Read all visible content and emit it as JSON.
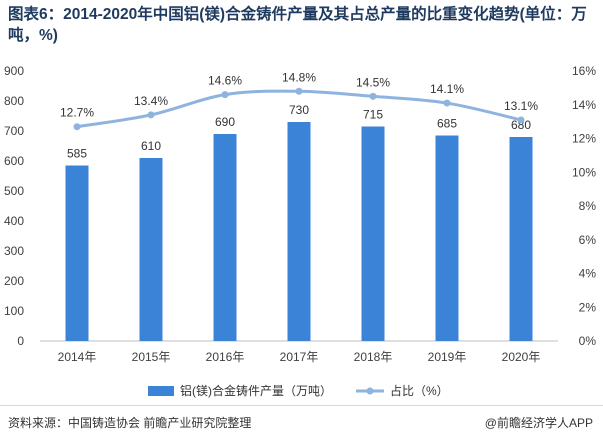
{
  "title": "图表6：2014-2020年中国铝(镁)合金铸件产量及其占总产量的比重变化趋势(单位：万吨，%)",
  "chart_data": {
    "type": "bar+line",
    "categories": [
      "2014年",
      "2015年",
      "2016年",
      "2017年",
      "2018年",
      "2019年",
      "2020年"
    ],
    "series": [
      {
        "name": "铝(镁)合金铸件产量（万吨）",
        "type": "bar",
        "axis": "left",
        "values": [
          585,
          610,
          690,
          730,
          715,
          685,
          680
        ],
        "labels": [
          "585",
          "610",
          "690",
          "730",
          "715",
          "685",
          "680"
        ],
        "color": "#3b83d6"
      },
      {
        "name": "占比（%）",
        "type": "line",
        "axis": "right",
        "values": [
          12.7,
          13.4,
          14.6,
          14.8,
          14.5,
          14.1,
          13.1
        ],
        "labels": [
          "12.7%",
          "13.4%",
          "14.6%",
          "14.8%",
          "14.5%",
          "14.1%",
          "13.1%"
        ],
        "color": "#8fb3df"
      }
    ],
    "y_left": {
      "min": 0,
      "max": 900,
      "step": 100,
      "ticks": [
        "0",
        "100",
        "200",
        "300",
        "400",
        "500",
        "600",
        "700",
        "800",
        "900"
      ]
    },
    "y_right": {
      "min": 0,
      "max": 16,
      "step": 2,
      "ticks": [
        "0%",
        "2%",
        "4%",
        "6%",
        "8%",
        "10%",
        "12%",
        "14%",
        "16%"
      ]
    },
    "legend_position": "bottom",
    "grid": false
  },
  "footer": {
    "source": "资料来源：中国铸造协会 前瞻产业研究院整理",
    "brand": "@前瞻经济学人APP"
  }
}
